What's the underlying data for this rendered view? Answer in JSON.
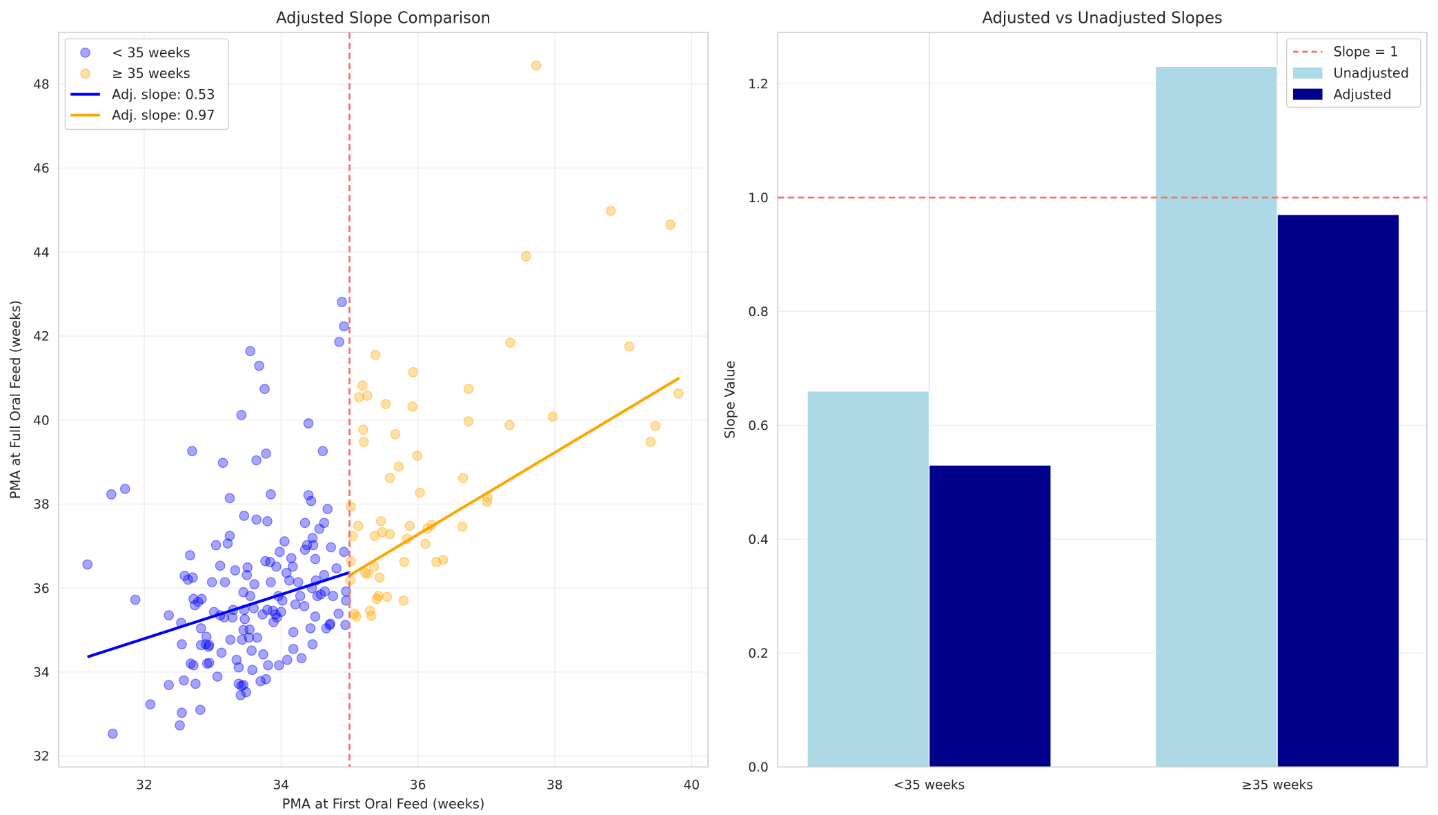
{
  "chart_data": [
    {
      "type": "scatter",
      "title": "Adjusted Slope Comparison",
      "xlabel": "PMA at First Oral Feed (weeks)",
      "ylabel": "PMA at Full Oral Feed (weeks)",
      "xlim": [
        30.75,
        40.24
      ],
      "ylim": [
        31.74,
        49.23
      ],
      "xticks": [
        32,
        34,
        36,
        38,
        40
      ],
      "yticks": [
        32,
        34,
        36,
        38,
        40,
        42,
        44,
        46,
        48
      ],
      "grid": true,
      "legend_position": "top-left",
      "cutoff_line": {
        "x": 35,
        "color": "#ff6b6b",
        "style": "dashed"
      },
      "series": [
        {
          "name": "< 35 weeks",
          "kind": "scatter",
          "color": "#0000ff",
          "alpha": 0.35,
          "points": [
            [
              31.17,
              36.56
            ],
            [
              31.52,
              38.23
            ],
            [
              31.72,
              38.36
            ],
            [
              31.87,
              35.72
            ],
            [
              31.54,
              32.53
            ],
            [
              32.09,
              33.23
            ],
            [
              32.36,
              35.35
            ],
            [
              32.36,
              33.69
            ],
            [
              32.52,
              32.73
            ],
            [
              32.55,
              33.03
            ],
            [
              32.58,
              33.8
            ],
            [
              32.54,
              35.17
            ],
            [
              32.55,
              34.66
            ],
            [
              32.59,
              36.29
            ],
            [
              32.64,
              36.2
            ],
            [
              32.67,
              36.78
            ],
            [
              32.7,
              39.26
            ],
            [
              32.68,
              34.2
            ],
            [
              32.72,
              34.16
            ],
            [
              32.75,
              33.72
            ],
            [
              32.72,
              35.74
            ],
            [
              32.74,
              35.59
            ],
            [
              32.71,
              36.25
            ],
            [
              32.79,
              35.67
            ],
            [
              32.83,
              34.64
            ],
            [
              32.84,
              35.74
            ],
            [
              32.83,
              35.04
            ],
            [
              32.82,
              33.1
            ],
            [
              32.9,
              34.66
            ],
            [
              32.91,
              34.84
            ],
            [
              32.92,
              34.2
            ],
            [
              32.94,
              34.6
            ],
            [
              32.95,
              34.64
            ],
            [
              32.95,
              34.22
            ],
            [
              32.99,
              36.14
            ],
            [
              33.02,
              35.43
            ],
            [
              33.05,
              37.02
            ],
            [
              33.07,
              33.89
            ],
            [
              33.11,
              35.35
            ],
            [
              33.11,
              36.53
            ],
            [
              33.13,
              34.46
            ],
            [
              33.15,
              38.98
            ],
            [
              33.18,
              36.14
            ],
            [
              33.17,
              35.3
            ],
            [
              33.22,
              37.06
            ],
            [
              33.25,
              37.24
            ],
            [
              33.25,
              38.14
            ],
            [
              33.26,
              34.77
            ],
            [
              33.29,
              35.3
            ],
            [
              33.3,
              35.48
            ],
            [
              33.33,
              36.42
            ],
            [
              33.35,
              34.29
            ],
            [
              33.38,
              33.72
            ],
            [
              33.42,
              33.67
            ],
            [
              33.41,
              33.45
            ],
            [
              33.45,
              33.69
            ],
            [
              33.38,
              34.11
            ],
            [
              33.42,
              40.12
            ],
            [
              33.45,
              35.9
            ],
            [
              33.45,
              35.0
            ],
            [
              33.43,
              34.77
            ],
            [
              33.46,
              35.48
            ],
            [
              33.46,
              37.72
            ],
            [
              33.47,
              35.26
            ],
            [
              33.49,
              33.52
            ],
            [
              33.5,
              36.31
            ],
            [
              33.51,
              36.49
            ],
            [
              33.53,
              34.82
            ],
            [
              33.54,
              35.01
            ],
            [
              33.55,
              41.64
            ],
            [
              33.55,
              35.81
            ],
            [
              33.57,
              34.51
            ],
            [
              33.58,
              34.05
            ],
            [
              33.6,
              35.52
            ],
            [
              33.61,
              36.09
            ],
            [
              33.64,
              37.63
            ],
            [
              33.64,
              39.04
            ],
            [
              33.65,
              34.82
            ],
            [
              33.68,
              41.29
            ],
            [
              33.7,
              33.78
            ],
            [
              33.73,
              35.37
            ],
            [
              33.74,
              34.42
            ],
            [
              33.76,
              40.74
            ],
            [
              33.77,
              36.64
            ],
            [
              33.78,
              39.2
            ],
            [
              33.78,
              33.83
            ],
            [
              33.8,
              37.59
            ],
            [
              33.8,
              35.48
            ],
            [
              33.81,
              34.16
            ],
            [
              33.84,
              36.62
            ],
            [
              33.85,
              38.23
            ],
            [
              33.85,
              36.14
            ],
            [
              33.88,
              35.46
            ],
            [
              33.89,
              35.19
            ],
            [
              33.92,
              35.37
            ],
            [
              33.93,
              36.51
            ],
            [
              33.94,
              35.3
            ],
            [
              33.96,
              35.81
            ],
            [
              33.97,
              34.16
            ],
            [
              33.98,
              36.86
            ],
            [
              34.0,
              35.43
            ],
            [
              34.02,
              35.7
            ],
            [
              34.05,
              37.11
            ],
            [
              34.08,
              36.36
            ],
            [
              34.09,
              34.29
            ],
            [
              34.12,
              36.18
            ],
            [
              34.15,
              36.71
            ],
            [
              34.17,
              36.51
            ],
            [
              34.18,
              34.95
            ],
            [
              34.18,
              34.55
            ],
            [
              34.21,
              35.61
            ],
            [
              34.25,
              36.14
            ],
            [
              34.28,
              35.81
            ],
            [
              34.3,
              34.33
            ],
            [
              34.34,
              35.57
            ],
            [
              34.35,
              37.55
            ],
            [
              34.35,
              36.91
            ],
            [
              34.38,
              37.02
            ],
            [
              34.4,
              38.21
            ],
            [
              34.4,
              39.92
            ],
            [
              34.43,
              35.04
            ],
            [
              34.44,
              38.07
            ],
            [
              34.45,
              36.0
            ],
            [
              34.46,
              37.19
            ],
            [
              34.46,
              34.66
            ],
            [
              34.47,
              37.02
            ],
            [
              34.5,
              36.69
            ],
            [
              34.5,
              35.32
            ],
            [
              34.51,
              36.18
            ],
            [
              34.53,
              35.81
            ],
            [
              34.56,
              37.41
            ],
            [
              34.58,
              35.85
            ],
            [
              34.61,
              39.26
            ],
            [
              34.63,
              36.31
            ],
            [
              34.63,
              37.55
            ],
            [
              34.64,
              35.92
            ],
            [
              34.66,
              35.04
            ],
            [
              34.68,
              37.88
            ],
            [
              34.71,
              35.12
            ],
            [
              34.73,
              36.97
            ],
            [
              34.76,
              35.81
            ],
            [
              34.81,
              36.47
            ],
            [
              34.84,
              35.39
            ],
            [
              34.85,
              41.86
            ],
            [
              34.89,
              42.81
            ],
            [
              34.92,
              42.23
            ],
            [
              34.92,
              36.86
            ],
            [
              34.94,
              35.12
            ],
            [
              34.95,
              35.7
            ],
            [
              34.95,
              35.92
            ],
            [
              34.72,
              35.15
            ]
          ]
        },
        {
          "name": "≥ 35 weeks",
          "kind": "scatter",
          "color": "#ffa500",
          "alpha": 0.35,
          "points": [
            [
              35.02,
              37.94
            ],
            [
              35.05,
              37.24
            ],
            [
              35.07,
              35.39
            ],
            [
              35.1,
              35.32
            ],
            [
              35.13,
              37.48
            ],
            [
              35.14,
              40.54
            ],
            [
              35.19,
              40.82
            ],
            [
              35.2,
              39.77
            ],
            [
              35.21,
              39.48
            ],
            [
              35.23,
              36.36
            ],
            [
              35.26,
              40.58
            ],
            [
              35.27,
              36.34
            ],
            [
              35.3,
              35.46
            ],
            [
              35.32,
              35.34
            ],
            [
              35.36,
              36.51
            ],
            [
              35.37,
              37.24
            ],
            [
              35.38,
              41.55
            ],
            [
              35.4,
              35.74
            ],
            [
              35.42,
              35.81
            ],
            [
              35.44,
              36.25
            ],
            [
              35.46,
              37.59
            ],
            [
              35.48,
              37.33
            ],
            [
              35.53,
              40.38
            ],
            [
              35.55,
              35.79
            ],
            [
              35.59,
              37.28
            ],
            [
              35.59,
              38.62
            ],
            [
              35.67,
              39.66
            ],
            [
              35.72,
              38.89
            ],
            [
              35.79,
              35.7
            ],
            [
              35.8,
              36.62
            ],
            [
              35.84,
              37.17
            ],
            [
              35.88,
              37.48
            ],
            [
              35.92,
              40.32
            ],
            [
              35.93,
              41.14
            ],
            [
              35.99,
              39.15
            ],
            [
              36.03,
              38.27
            ],
            [
              36.11,
              37.06
            ],
            [
              36.14,
              37.41
            ],
            [
              36.2,
              37.5
            ],
            [
              36.27,
              36.62
            ],
            [
              36.37,
              36.67
            ],
            [
              36.65,
              37.46
            ],
            [
              36.66,
              38.62
            ],
            [
              36.74,
              40.74
            ],
            [
              36.74,
              39.97
            ],
            [
              37.01,
              38.05
            ],
            [
              37.02,
              38.16
            ],
            [
              37.34,
              39.88
            ],
            [
              37.35,
              41.84
            ],
            [
              37.58,
              43.9
            ],
            [
              37.73,
              48.44
            ],
            [
              37.97,
              40.08
            ],
            [
              38.82,
              44.98
            ],
            [
              39.09,
              41.75
            ],
            [
              39.4,
              39.48
            ],
            [
              39.47,
              39.86
            ],
            [
              39.69,
              44.65
            ],
            [
              39.81,
              40.63
            ],
            [
              35.01,
              36.18
            ],
            [
              35.02,
              36.64
            ]
          ]
        },
        {
          "name": "Adj. slope: 0.53",
          "kind": "line",
          "color": "#0000ff",
          "points": [
            [
              31.17,
              34.36
            ],
            [
              35.0,
              36.37
            ]
          ]
        },
        {
          "name": "Adj. slope: 0.97",
          "kind": "line",
          "color": "#ffa500",
          "points": [
            [
              35.0,
              36.3
            ],
            [
              39.82,
              41.0
            ]
          ]
        }
      ]
    },
    {
      "type": "bar",
      "title": "Adjusted vs Unadjusted Slopes",
      "xlabel": "",
      "ylabel": "Slope Value",
      "categories": [
        "<35 weeks",
        "≥35 weeks"
      ],
      "ylim": [
        0,
        1.29
      ],
      "yticks": [
        "0.0",
        "0.2",
        "0.4",
        "0.6",
        "0.8",
        "1.0",
        "1.2"
      ],
      "grid": true,
      "legend_position": "top-right",
      "reference_line": {
        "name": "Slope = 1",
        "y": 1.0,
        "color": "#ff6b6b",
        "style": "dashed"
      },
      "series": [
        {
          "name": "Unadjusted",
          "color": "#add8e6",
          "values": [
            0.66,
            1.23
          ]
        },
        {
          "name": "Adjusted",
          "color": "#00008b",
          "values": [
            0.53,
            0.97
          ]
        }
      ]
    }
  ]
}
